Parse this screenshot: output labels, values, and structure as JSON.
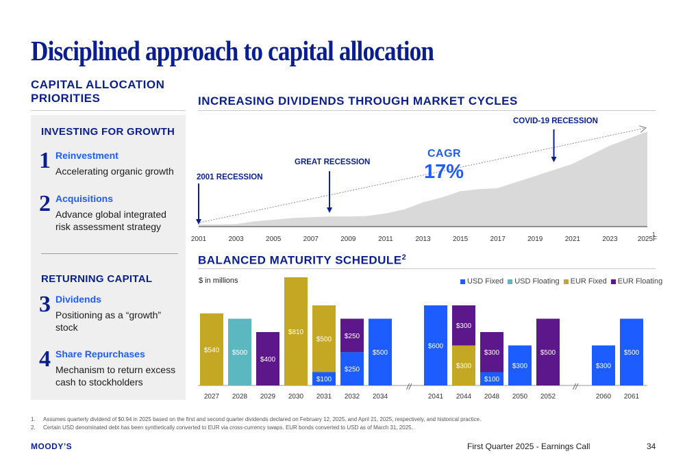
{
  "title": "Disciplined approach to capital allocation",
  "left": {
    "header_line1": "CAPITAL ALLOCATION",
    "header_line2": "PRIORITIES",
    "growth_header": "INVESTING FOR GROWTH",
    "returning_header": "RETURNING CAPITAL",
    "items": [
      {
        "num": "1",
        "title": "Reinvestment",
        "desc": [
          "Accelerating organic growth"
        ]
      },
      {
        "num": "2",
        "title": "Acquisitions",
        "desc": [
          "Advance global integrated",
          "risk assessment strategy"
        ]
      },
      {
        "num": "3",
        "title": "Dividends",
        "desc": [
          "Positioning as a “growth”",
          "stock"
        ]
      },
      {
        "num": "4",
        "title": "Share Repurchases",
        "desc": [
          "Mechanism to return excess",
          "cash to stockholders"
        ]
      }
    ]
  },
  "dividends": {
    "header": "INCREASING DIVIDENDS THROUGH MARKET CYCLES",
    "cagr_label": "CAGR",
    "cagr_value": "17%",
    "annotations": [
      {
        "label": "2001 RECESSION",
        "year": 2001
      },
      {
        "label": "GREAT RECESSION",
        "year": 2008
      },
      {
        "label": "COVID-19 RECESSION",
        "year": 2020
      }
    ],
    "footnote_marker": "1"
  },
  "maturity": {
    "header": "BALANCED MATURITY SCHEDULE",
    "header_sup": "2",
    "units": "$ in millions",
    "break_symbol": "//"
  },
  "chart_data": [
    {
      "type": "area",
      "x_tick_labels": [
        "2001",
        "2003",
        "2005",
        "2007",
        "2009",
        "2011",
        "2013",
        "2015",
        "2017",
        "2019",
        "2021",
        "2023",
        "2025F"
      ],
      "x": [
        2001,
        2002,
        2003,
        2004,
        2005,
        2006,
        2007,
        2008,
        2009,
        2010,
        2011,
        2012,
        2013,
        2014,
        2015,
        2016,
        2017,
        2018,
        2019,
        2020,
        2021,
        2022,
        2023,
        2024,
        2025
      ],
      "values": [
        0.09,
        0.09,
        0.1,
        0.21,
        0.27,
        0.34,
        0.37,
        0.4,
        0.4,
        0.42,
        0.52,
        0.68,
        0.96,
        1.15,
        1.4,
        1.48,
        1.52,
        1.76,
        2.0,
        2.24,
        2.48,
        2.84,
        3.2,
        3.48,
        3.76
      ],
      "ylim": [
        0,
        3.76
      ],
      "grid": false
    },
    {
      "type": "bar",
      "stacked": true,
      "categories": [
        "2027",
        "2028",
        "2029",
        "2030",
        "2031",
        "2032",
        "2034",
        "2041",
        "2044",
        "2048",
        "2050",
        "2052",
        "2060",
        "2061"
      ],
      "legend": {
        "position": "top-right"
      },
      "series": [
        {
          "name": "USD Fixed",
          "color": "#1d5cff",
          "values": [
            0,
            0,
            0,
            0,
            100,
            250,
            500,
            600,
            0,
            100,
            300,
            0,
            300,
            500
          ]
        },
        {
          "name": "USD Floating",
          "color": "#5bb8c0",
          "values": [
            0,
            500,
            0,
            0,
            0,
            0,
            0,
            0,
            0,
            0,
            0,
            0,
            0,
            0
          ]
        },
        {
          "name": "EUR Fixed",
          "color": "#c4a823",
          "values": [
            540,
            0,
            0,
            810,
            500,
            0,
            0,
            0,
            300,
            0,
            0,
            0,
            0,
            0
          ]
        },
        {
          "name": "EUR Floating",
          "color": "#5c188a",
          "values": [
            0,
            0,
            400,
            0,
            0,
            250,
            0,
            0,
            300,
            300,
            0,
            500,
            0,
            0
          ]
        }
      ],
      "ylim": [
        0,
        810
      ],
      "grid": false
    }
  ],
  "footnotes": [
    {
      "n": "1.",
      "text": "Assumes quarterly dividend of $0.94 in 2025 based on the first and second quarter dividends declared on February 12, 2025, and April 21, 2025, respectively, and historical practice."
    },
    {
      "n": "2.",
      "text": "Certain USD denominated debt has been synthetically converted to EUR via cross-currency swaps. EUR bonds converted to USD as of March 31, 2025."
    }
  ],
  "footer": {
    "logo": "MOODY’S",
    "event": "First Quarter 2025 - Earnings Call",
    "page": "34"
  }
}
